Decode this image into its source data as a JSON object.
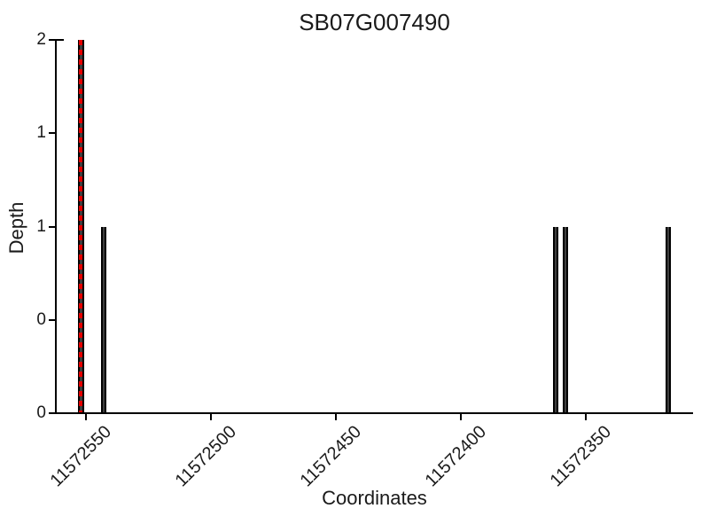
{
  "chart_data": {
    "type": "bar",
    "title": "SB07G007490",
    "xlabel": "Coordinates",
    "ylabel": "Depth",
    "x_axis_reversed": true,
    "xlim": [
      11572562,
      11572307
    ],
    "ylim": [
      0,
      2
    ],
    "x_ticks": [
      11572550,
      11572500,
      11572450,
      11572400,
      11572350
    ],
    "y_ticks": [
      {
        "value": 2.0,
        "label": "2"
      },
      {
        "value": 1.5,
        "label": "1"
      },
      {
        "value": 1.0,
        "label": "1"
      },
      {
        "value": 0.5,
        "label": "0"
      },
      {
        "value": 0.0,
        "label": "0"
      }
    ],
    "bars": [
      {
        "coordinate": 11572552,
        "depth": 2,
        "marker": true
      },
      {
        "coordinate": 11572543,
        "depth": 1,
        "marker": false
      },
      {
        "coordinate": 11572362,
        "depth": 1,
        "marker": false
      },
      {
        "coordinate": 11572358,
        "depth": 1,
        "marker": false
      },
      {
        "coordinate": 11572317,
        "depth": 1,
        "marker": false
      }
    ],
    "marker_line": {
      "coordinate": 11572552,
      "style": "dashed",
      "color": "#e60000"
    },
    "colors": {
      "bar_fill": "#3f3f3f",
      "bar_edge": "#000000",
      "axis": "#000000",
      "text": "#1a1a1a"
    },
    "grid": false
  }
}
